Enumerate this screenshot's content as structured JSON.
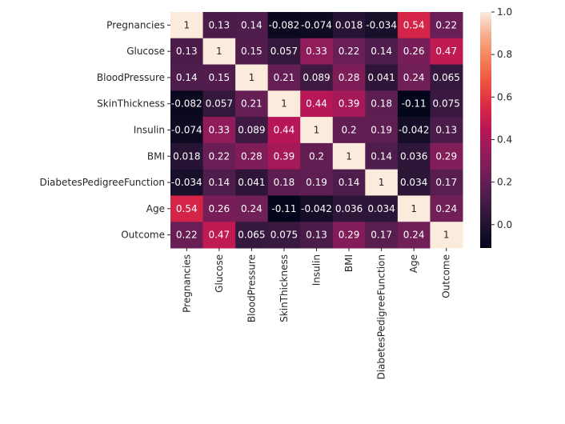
{
  "chart_data": {
    "type": "heatmap",
    "title": "",
    "xlabel": "",
    "ylabel": "",
    "labels": [
      "Pregnancies",
      "Glucose",
      "BloodPressure",
      "SkinThickness",
      "Insulin",
      "BMI",
      "DiabetesPedigreeFunction",
      "Age",
      "Outcome"
    ],
    "matrix": [
      [
        1,
        0.13,
        0.14,
        -0.082,
        -0.074,
        0.018,
        -0.034,
        0.54,
        0.22
      ],
      [
        0.13,
        1,
        0.15,
        0.057,
        0.33,
        0.22,
        0.14,
        0.26,
        0.47
      ],
      [
        0.14,
        0.15,
        1,
        0.21,
        0.089,
        0.28,
        0.041,
        0.24,
        0.065
      ],
      [
        -0.082,
        0.057,
        0.21,
        1,
        0.44,
        0.39,
        0.18,
        -0.11,
        0.075
      ],
      [
        -0.074,
        0.33,
        0.089,
        0.44,
        1,
        0.2,
        0.19,
        -0.042,
        0.13
      ],
      [
        0.018,
        0.22,
        0.28,
        0.39,
        0.2,
        1,
        0.14,
        0.036,
        0.29
      ],
      [
        -0.034,
        0.14,
        0.041,
        0.18,
        0.19,
        0.14,
        1,
        0.034,
        0.17
      ],
      [
        0.54,
        0.26,
        0.24,
        -0.11,
        -0.042,
        0.036,
        0.034,
        1,
        0.24
      ],
      [
        0.22,
        0.47,
        0.065,
        0.075,
        0.13,
        0.29,
        0.17,
        0.24,
        1
      ]
    ],
    "colormap": "rocket",
    "vmin": -0.11,
    "vmax": 1.0,
    "colorbar_ticks": [
      1.0,
      0.8,
      0.6,
      0.4,
      0.2,
      0.0
    ],
    "colorbar_tick_labels": [
      "1.0",
      "0.8",
      "0.6",
      "0.4",
      "0.2",
      "0.0"
    ],
    "annotations": true,
    "colorbar_position": "right"
  }
}
